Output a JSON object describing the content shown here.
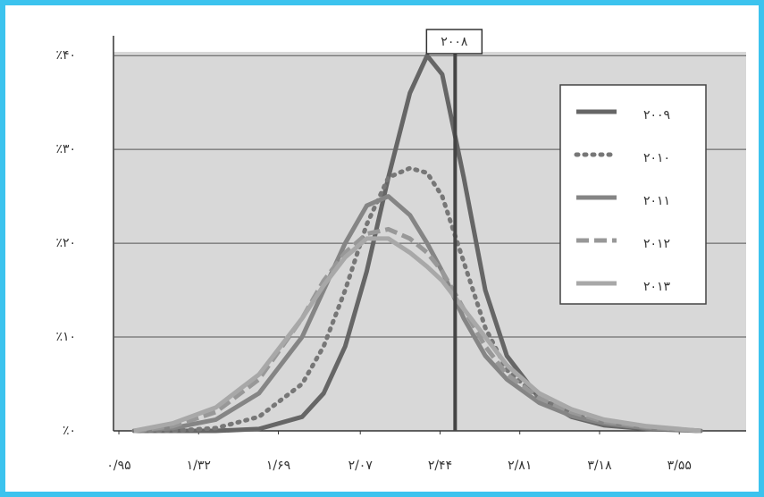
{
  "chart_data": {
    "type": "line",
    "x": [
      1.02,
      1.2,
      1.4,
      1.6,
      1.8,
      1.9,
      2.0,
      2.1,
      2.2,
      2.3,
      2.38,
      2.45,
      2.55,
      2.65,
      2.75,
      2.9,
      3.05,
      3.2,
      3.4,
      3.65
    ],
    "series": [
      {
        "name": "۲۰۰۹",
        "color": "#666666",
        "style": "solid",
        "values": [
          0,
          0,
          0,
          0.2,
          1.5,
          4,
          9,
          17,
          27,
          36,
          40,
          38,
          27,
          15,
          8,
          3.5,
          1.5,
          0.6,
          0.2,
          0
        ]
      },
      {
        "name": "۲۰۱۰",
        "color": "#777777",
        "style": "dotted",
        "values": [
          0,
          0,
          0.3,
          1.5,
          5,
          9,
          15,
          22,
          27,
          28,
          27.5,
          25,
          18,
          11,
          6.5,
          3.5,
          2,
          1,
          0.4,
          0
        ]
      },
      {
        "name": "۲۰۱۱",
        "color": "#858585",
        "style": "solid",
        "values": [
          0,
          0.3,
          1.2,
          4,
          10,
          15,
          20,
          24,
          25,
          23,
          20,
          17,
          12,
          8,
          5.5,
          3,
          1.6,
          0.8,
          0.3,
          0
        ]
      },
      {
        "name": "۲۰۱۲",
        "color": "#989898",
        "style": "dashed",
        "values": [
          0,
          0.5,
          2,
          5.5,
          12,
          16,
          19,
          21,
          21.5,
          20.5,
          19,
          17,
          13,
          9,
          6,
          3.5,
          2,
          1,
          0.4,
          0
        ]
      },
      {
        "name": "۲۰۱۳",
        "color": "#a8a8a8",
        "style": "solid",
        "values": [
          0,
          0.8,
          2.5,
          6,
          12,
          15.5,
          18.5,
          20.5,
          20.5,
          19,
          17.5,
          16,
          13,
          10,
          7,
          4,
          2.3,
          1.2,
          0.5,
          0
        ]
      }
    ],
    "xlim": [
      0.925,
      3.86
    ],
    "xticks": [
      {
        "value": 0.95,
        "label": "۰/۹۵"
      },
      {
        "value": 1.32,
        "label": "۱/۳۲"
      },
      {
        "value": 1.69,
        "label": "۱/۶۹"
      },
      {
        "value": 2.07,
        "label": "۲/۰۷"
      },
      {
        "value": 2.44,
        "label": "۲/۴۴"
      },
      {
        "value": 2.81,
        "label": "۲/۸۱"
      },
      {
        "value": 3.18,
        "label": "۳/۱۸"
      },
      {
        "value": 3.55,
        "label": "۳/۵۵"
      }
    ],
    "ylim": [
      0,
      40.4
    ],
    "yticks": [
      {
        "value": 0,
        "label": "٪۰"
      },
      {
        "value": 10,
        "label": "٪۱۰"
      },
      {
        "value": 20,
        "label": "٪۲۰"
      },
      {
        "value": 30,
        "label": "٪۳۰"
      },
      {
        "value": 40,
        "label": "٪۴۰"
      }
    ],
    "grid": true,
    "legend": "upper-right",
    "annotation": {
      "text": "۲۰۰۸",
      "x": 2.51
    }
  }
}
